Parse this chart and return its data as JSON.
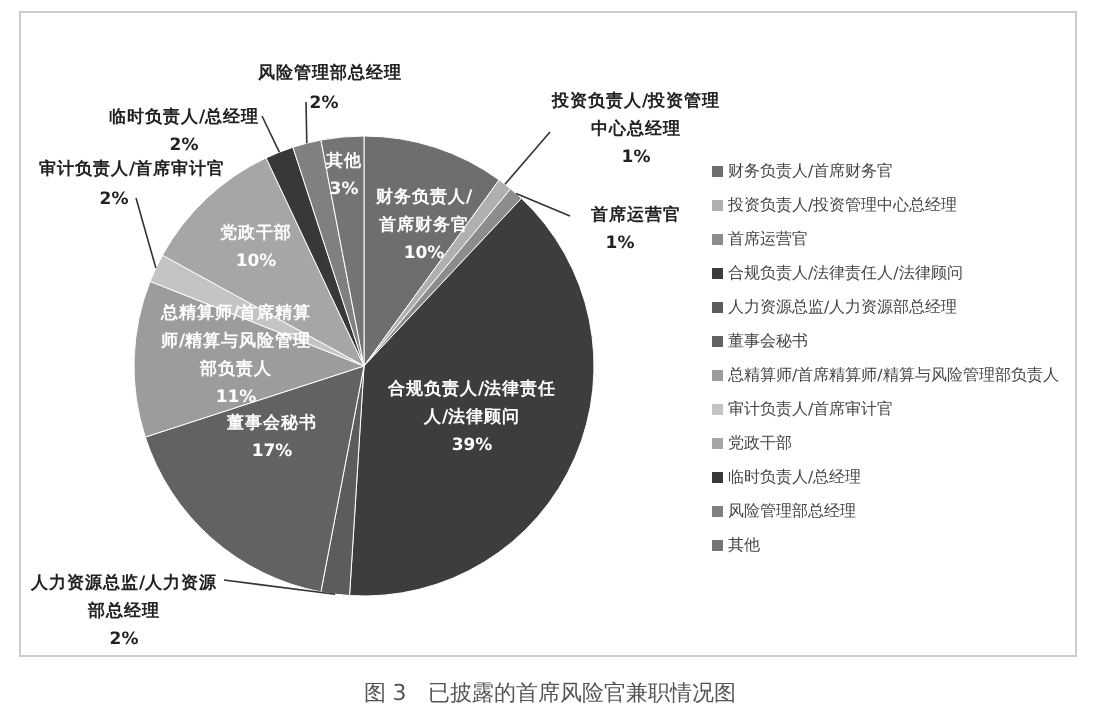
{
  "chart_data": {
    "type": "pie",
    "title": "图 3　已披露的首席风险官兼职情况图",
    "categories": [
      "财务负责人/首席财务官",
      "投资负责人/投资管理中心总经理",
      "首席运营官",
      "合规负责人/法律责任人/法律顾问",
      "人力资源总监/人力资源部总经理",
      "董事会秘书",
      "总精算师/首席精算师/精算与风险管理部负责人",
      "审计负责人/首席审计官",
      "党政干部",
      "临时负责人/总经理",
      "风险管理部总经理",
      "其他"
    ],
    "values": [
      10,
      1,
      1,
      39,
      2,
      17,
      11,
      2,
      10,
      2,
      2,
      3
    ],
    "value_labels": [
      "10%",
      "1%",
      "1%",
      "39%",
      "2%",
      "17%",
      "11%",
      "2%",
      "10%",
      "2%",
      "2%",
      "3%"
    ],
    "colors": [
      "#6e6e6e",
      "#b0b0b0",
      "#8c8c8c",
      "#3d3d3d",
      "#5c5c5c",
      "#626262",
      "#9c9c9c",
      "#c4c4c4",
      "#a6a6a6",
      "#383838",
      "#808080",
      "#747474"
    ],
    "legend": "right"
  }
}
